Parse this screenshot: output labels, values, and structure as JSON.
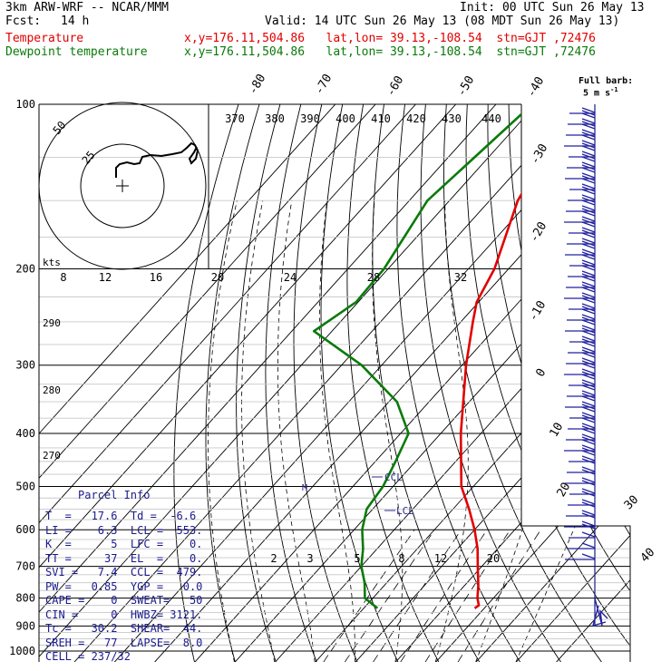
{
  "header": {
    "model": "3km ARW-WRF -- NCAR/MMM",
    "init": "Init: 00 UTC Sun 26 May 13",
    "fcst_label": "Fcst:",
    "fcst_value": "14 h",
    "valid": "Valid: 14 UTC Sun 26 May 13 (08 MDT Sun 26 May 13)",
    "temp_label": "Temperature",
    "temp_loc": "x,y=176.11,504.86   lat,lon= 39.13,-108.54  stn=GJT ,72476",
    "dew_label": "Dewpoint temperature",
    "dew_loc": "x,y=176.11,504.86   lat,lon= 39.13,-108.54  stn=GJT ,72476"
  },
  "barb_legend": {
    "line1": "Full barb:",
    "line2": "5 m s",
    "sup": "-1"
  },
  "colors": {
    "temperature": "#e00000",
    "dewpoint": "#0a7a0a",
    "info": "#1a1a8c",
    "annot": "#2a2a8a"
  },
  "hodograph": {
    "units": "kts",
    "ring_labels": [
      "8",
      "12",
      "16",
      "20",
      "24",
      "28",
      "32"
    ],
    "circle_labels": [
      "25",
      "50"
    ]
  },
  "theta_labels": [
    "370",
    "380",
    "390",
    "400",
    "410",
    "420",
    "430",
    "440"
  ],
  "theta_left_labels": [
    "290",
    "280",
    "270"
  ],
  "mixing_ratio_labels": [
    "2",
    "3",
    "5",
    "8",
    "12",
    "20"
  ],
  "ccl_label": "CCL",
  "lcl_label": "LCL",
  "m_label": "M",
  "parcel_info": {
    "title": "Parcel Info",
    "rows": [
      "T  =   17.6  Td =  -6.6",
      "LI =    6.3  LCL =  553.",
      "K  =      5  LFC =    0.",
      "TT =     37  EL  =    0.",
      "SVI =   7.4  CCL =  479.",
      "PW =   0.85  YGP =   0.0",
      "CAPE =    0  SWEAT=   50",
      "CIN =     0  HWBZ= 3121.",
      "Tc =   30.2  SHEAR=  44.",
      "SREH =   77  LAPSE=  8.0",
      "CELL = 237/32"
    ]
  },
  "chart_data": {
    "type": "line",
    "title": "",
    "xlabel": "",
    "ylabel": "",
    "pressure_levels": [
      "100",
      "200",
      "300",
      "400",
      "500",
      "600",
      "700",
      "800",
      "900",
      "1000"
    ],
    "isotherm_labels": [
      "-80",
      "-70",
      "-60",
      "-50",
      "-40",
      "-30",
      "-20",
      "-10",
      "0",
      "10",
      "20",
      "30",
      "40"
    ],
    "series": [
      {
        "name": "Temperature",
        "color": "#e00000",
        "p": [
          100,
          150,
          200,
          230,
          250,
          300,
          400,
          500,
          550,
          600,
          650,
          700,
          760,
          800,
          825,
          835
        ],
        "t": [
          -70.5,
          -63,
          -53.5,
          -50.5,
          -47,
          -39,
          -25,
          -13,
          -6,
          0,
          5,
          9,
          13.5,
          16,
          18,
          17.6
        ]
      },
      {
        "name": "Dewpoint temperature",
        "color": "#0a7a0a",
        "p": [
          100,
          150,
          200,
          230,
          260,
          300,
          350,
          400,
          450,
          500,
          550,
          600,
          650,
          700,
          750,
          800,
          835
        ],
        "t": [
          -81,
          -85.5,
          -81,
          -80.5,
          -84.5,
          -65,
          -48,
          -38,
          -35,
          -32.5,
          -31.5,
          -28,
          -23.5,
          -20,
          -15.5,
          -12,
          -6.6
        ]
      }
    ]
  }
}
